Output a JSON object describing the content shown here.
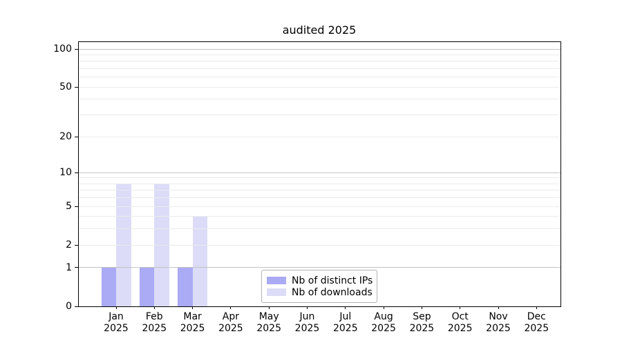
{
  "title": "audited 2025",
  "chart_data": {
    "type": "bar",
    "title": "audited 2025",
    "xlabel": "",
    "ylabel": "",
    "categories": [
      "Jan 2025",
      "Feb 2025",
      "Mar 2025",
      "Apr 2025",
      "May 2025",
      "Jun 2025",
      "Jul 2025",
      "Aug 2025",
      "Sep 2025",
      "Oct 2025",
      "Nov 2025",
      "Dec 2025"
    ],
    "series": [
      {
        "name": "Nb of distinct IPs",
        "color": "#aaaaf5",
        "values": [
          1,
          1,
          1,
          0,
          0,
          0,
          0,
          0,
          0,
          0,
          0,
          0
        ]
      },
      {
        "name": "Nb of downloads",
        "color": "#dcdcf8",
        "values": [
          8,
          8,
          4,
          0,
          0,
          0,
          0,
          0,
          0,
          0,
          0,
          0
        ]
      }
    ],
    "yscale": "log1p",
    "ylim": [
      0,
      113.5
    ],
    "yticks": [
      0,
      1,
      2,
      5,
      10,
      20,
      50,
      100
    ],
    "grid": "horizontal",
    "gridlines": {
      "major": [
        1,
        10,
        100
      ],
      "minor": [
        2,
        3,
        4,
        5,
        6,
        7,
        8,
        9,
        20,
        30,
        40,
        50,
        60,
        70,
        80,
        90
      ]
    },
    "legend": {
      "position": "lower center",
      "entries": [
        "Nb of distinct IPs",
        "Nb of downloads"
      ]
    }
  },
  "colors": {
    "background": "#ffffff",
    "frame": "#000000",
    "grid_major": "#c3c3c3",
    "grid_minor": "#ebebeb",
    "legend_border": "#b3b3b3",
    "text": "#000000",
    "series_distinct_ips": "#aaaaf5",
    "series_downloads": "#dcdcf8"
  }
}
